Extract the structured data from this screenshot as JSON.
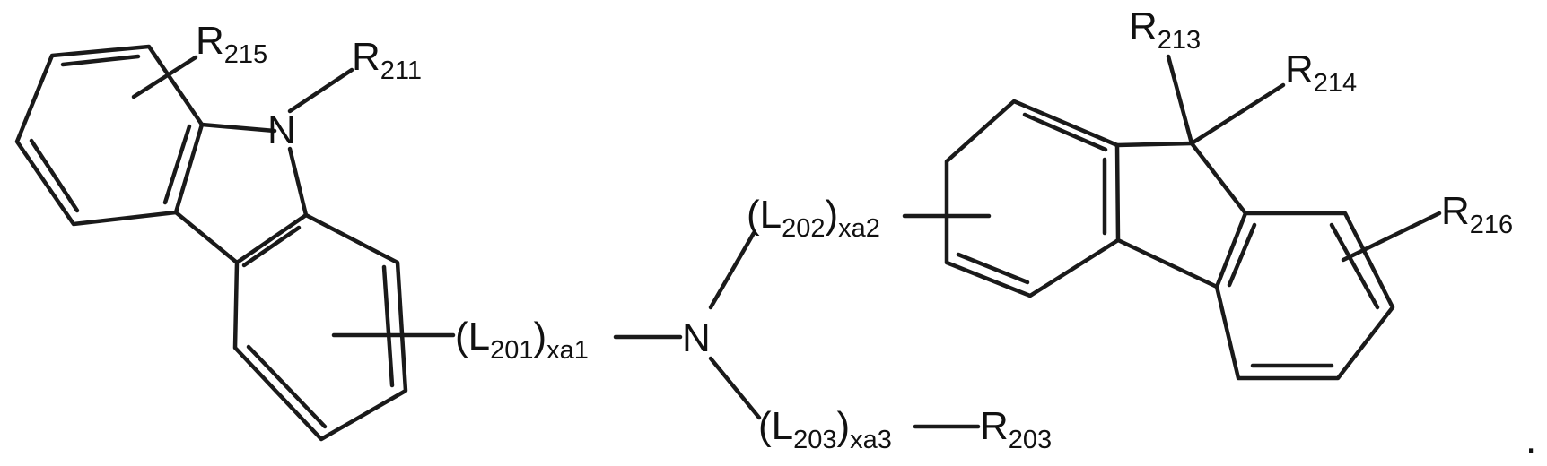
{
  "labels": {
    "r215": {
      "main": "R",
      "sub": "215"
    },
    "r211": {
      "main": "R",
      "sub": "211"
    },
    "n_carbazole": {
      "main": "N"
    },
    "l201": {
      "open": "(L",
      "sub": "201",
      "close": ")",
      "sub2": "xa1"
    },
    "n_center": {
      "main": "N"
    },
    "l202": {
      "open": "(L",
      "sub": "202",
      "close": ")",
      "sub2": "xa2"
    },
    "l203": {
      "open": "(L",
      "sub": "203",
      "close": ")",
      "sub2": "xa3"
    },
    "r203": {
      "main": "R",
      "sub": "203"
    },
    "r213": {
      "main": "R",
      "sub": "213"
    },
    "r214": {
      "main": "R",
      "sub": "214"
    },
    "r216": {
      "main": "R",
      "sub": "216"
    },
    "period": "."
  },
  "colors": {
    "ink": "#1a1a1a",
    "background": "#ffffff"
  }
}
